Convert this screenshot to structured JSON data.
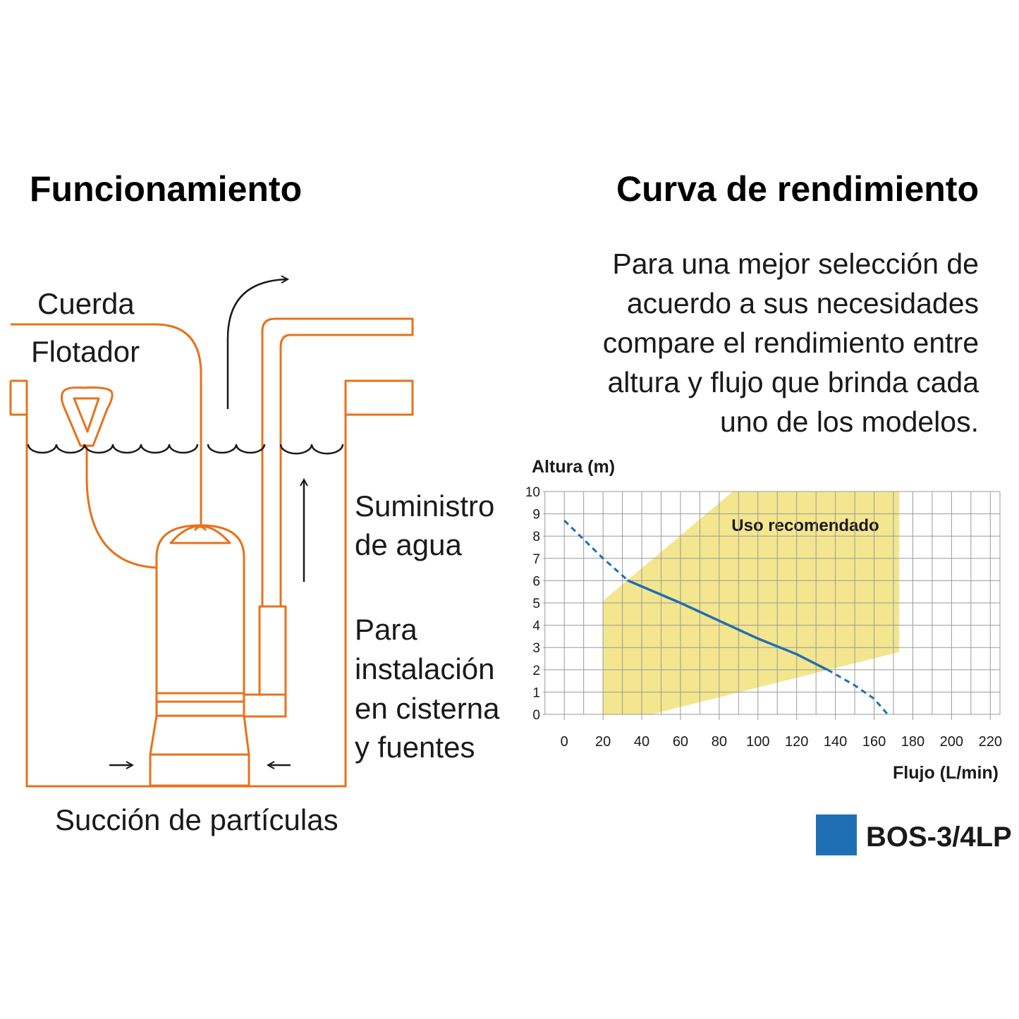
{
  "diagram": {
    "title": "Funcionamiento",
    "labels": [
      [
        "Cuerda"
      ],
      [
        "Flotador"
      ],
      [
        "Suministro",
        "de agua"
      ],
      [
        "Para",
        "instalación",
        "en cisterna",
        "y fuentes"
      ],
      [
        "Succión de partículas"
      ]
    ]
  },
  "chart_data": {
    "type": "line",
    "title": "Curva de rendimiento",
    "subtitle": [
      "Para una mejor selección de",
      "acuerdo a sus necesidades",
      "compare el rendimiento entre",
      "altura y flujo que brinda cada",
      "uno de los modelos."
    ],
    "x_label": "Flujo (L/min)",
    "y_label": "Altura (m)",
    "xlim": [
      -11,
      225
    ],
    "ylim": [
      0,
      10
    ],
    "xticks": [
      0,
      20,
      40,
      60,
      80,
      100,
      120,
      140,
      160,
      180,
      200,
      220
    ],
    "x_minor_ticks": [
      -10,
      10,
      30,
      50,
      70,
      90,
      110,
      130,
      150,
      170,
      190,
      210
    ],
    "yticks": [
      0,
      1,
      2,
      3,
      4,
      5,
      6,
      7,
      8,
      9,
      10
    ],
    "grid": true,
    "region": {
      "label": "Uso recomendado",
      "color": "#f3e68e",
      "x": [
        20,
        20,
        87,
        173,
        173,
        45
      ],
      "y": [
        0,
        5.1,
        10,
        10,
        2.8,
        0
      ]
    },
    "series": [
      {
        "name": "BOS-3/4LP",
        "color": "#1f6fb5",
        "x": [
          0,
          20,
          33,
          60,
          80,
          100,
          120,
          137,
          150,
          160,
          167
        ],
        "values": [
          8.7,
          7.0,
          6.0,
          5.0,
          4.2,
          3.4,
          2.7,
          1.95,
          1.3,
          0.7,
          0.0
        ]
      }
    ]
  }
}
